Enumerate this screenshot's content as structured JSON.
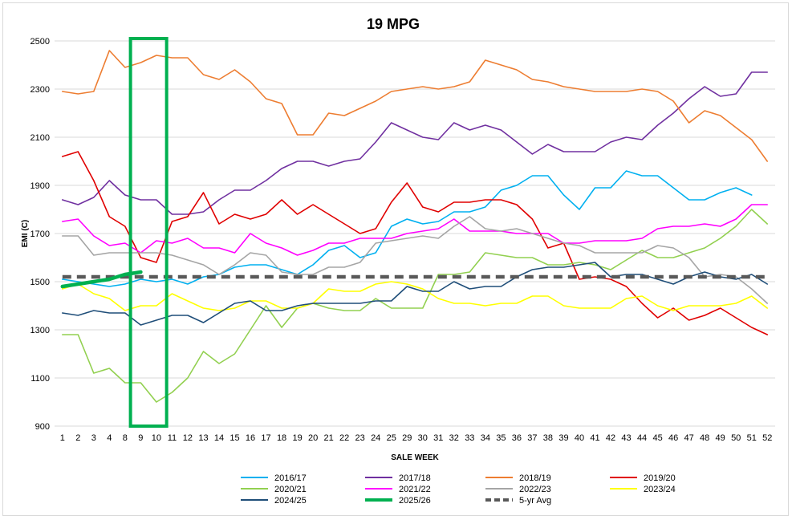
{
  "chart_data": {
    "type": "line",
    "title": "19 MPG",
    "xlabel": "SALE WEEK",
    "ylabel": "EMI (C)",
    "ylim": [
      900,
      2500
    ],
    "yticks": [
      900,
      1100,
      1300,
      1500,
      1700,
      1900,
      2100,
      2300,
      2500
    ],
    "grid": true,
    "legend_position": "bottom",
    "categories": [
      "1",
      "2",
      "3",
      "4",
      "8",
      "9",
      "10",
      "11",
      "12",
      "13",
      "14",
      "15",
      "16",
      "17",
      "18",
      "19",
      "20",
      "21",
      "22",
      "23",
      "24",
      "25",
      "29",
      "30",
      "31",
      "32",
      "33",
      "34",
      "35",
      "36",
      "37",
      "38",
      "39",
      "40",
      "41",
      "42",
      "43",
      "44",
      "45",
      "46",
      "47",
      "48",
      "49",
      "50",
      "51",
      "52"
    ],
    "highlight": {
      "from": "9",
      "to": "10",
      "color": "#00b050"
    },
    "series": [
      {
        "name": "2016/17",
        "color": "#00b0f0",
        "width": 1.6,
        "values": [
          1510,
          1500,
          1490,
          1480,
          1490,
          1510,
          1500,
          1510,
          1490,
          1520,
          1530,
          1560,
          1570,
          1570,
          1550,
          1530,
          1570,
          1630,
          1650,
          1600,
          1620,
          1730,
          1760,
          1740,
          1750,
          1790,
          1790,
          1810,
          1880,
          1900,
          1940,
          1940,
          1860,
          1800,
          1890,
          1890,
          1960,
          1940,
          1940,
          1890,
          1840,
          1840,
          1870,
          1890,
          1860,
          null
        ]
      },
      {
        "name": "2017/18",
        "color": "#7030a0",
        "width": 1.6,
        "values": [
          1840,
          1820,
          1850,
          1920,
          1860,
          1840,
          1840,
          1780,
          1780,
          1790,
          1840,
          1880,
          1880,
          1920,
          1970,
          2000,
          2000,
          1980,
          2000,
          2010,
          2080,
          2160,
          2130,
          2100,
          2090,
          2160,
          2130,
          2150,
          2130,
          2080,
          2030,
          2070,
          2040,
          2040,
          2040,
          2080,
          2100,
          2090,
          2150,
          2200,
          2260,
          2310,
          2270,
          2280,
          2370,
          2370
        ]
      },
      {
        "name": "2018/19",
        "color": "#ed7d31",
        "width": 1.6,
        "values": [
          2290,
          2280,
          2290,
          2460,
          2390,
          2410,
          2440,
          2430,
          2430,
          2360,
          2340,
          2380,
          2330,
          2260,
          2240,
          2110,
          2110,
          2200,
          2190,
          2220,
          2250,
          2290,
          2300,
          2310,
          2300,
          2310,
          2330,
          2420,
          2400,
          2380,
          2340,
          2330,
          2310,
          2300,
          2290,
          2290,
          2290,
          2300,
          2290,
          2250,
          2160,
          2210,
          2190,
          2140,
          2090,
          2000
        ]
      },
      {
        "name": "2019/20",
        "color": "#e00000",
        "width": 1.6,
        "values": [
          2020,
          2040,
          1920,
          1770,
          1730,
          1600,
          1580,
          1750,
          1770,
          1870,
          1740,
          1780,
          1760,
          1780,
          1840,
          1780,
          1820,
          1780,
          1740,
          1700,
          1720,
          1830,
          1910,
          1810,
          1790,
          1830,
          1830,
          1840,
          1840,
          1820,
          1760,
          1640,
          1660,
          1510,
          1520,
          1510,
          1480,
          1410,
          1350,
          1390,
          1340,
          1360,
          1390,
          1350,
          1310,
          1280
        ]
      },
      {
        "name": "2020/21",
        "color": "#92d050",
        "width": 1.6,
        "values": [
          1280,
          1280,
          1120,
          1140,
          1080,
          1080,
          1000,
          1040,
          1100,
          1210,
          1160,
          1200,
          1300,
          1400,
          1310,
          1390,
          1410,
          1390,
          1380,
          1380,
          1430,
          1390,
          1390,
          1390,
          1530,
          1530,
          1540,
          1620,
          1610,
          1600,
          1600,
          1570,
          1570,
          1580,
          1570,
          1550,
          1590,
          1630,
          1600,
          1600,
          1620,
          1640,
          1680,
          1730,
          1800,
          1740
        ]
      },
      {
        "name": "2021/22",
        "color": "#ff00ff",
        "width": 1.6,
        "values": [
          1750,
          1760,
          1690,
          1650,
          1660,
          1620,
          1670,
          1660,
          1680,
          1640,
          1640,
          1620,
          1700,
          1660,
          1640,
          1610,
          1630,
          1660,
          1660,
          1680,
          1680,
          1680,
          1700,
          1710,
          1720,
          1760,
          1710,
          1710,
          1710,
          1700,
          1700,
          1700,
          1660,
          1660,
          1670,
          1670,
          1670,
          1680,
          1720,
          1730,
          1730,
          1740,
          1730,
          1760,
          1820,
          1820
        ]
      },
      {
        "name": "2022/23",
        "color": "#a5a5a5",
        "width": 1.6,
        "values": [
          1690,
          1690,
          1610,
          1620,
          1620,
          1620,
          1620,
          1610,
          1590,
          1570,
          1530,
          1570,
          1620,
          1610,
          1540,
          1530,
          1530,
          1560,
          1560,
          1580,
          1660,
          1670,
          1680,
          1690,
          1680,
          1730,
          1770,
          1720,
          1710,
          1720,
          1700,
          1680,
          1660,
          1650,
          1620,
          1620,
          1620,
          1620,
          1650,
          1640,
          1600,
          1520,
          1530,
          1520,
          1470,
          1410
        ]
      },
      {
        "name": "2023/24",
        "color": "#ffff00",
        "width": 1.6,
        "values": [
          1470,
          1490,
          1450,
          1430,
          1380,
          1400,
          1400,
          1450,
          1420,
          1390,
          1380,
          1390,
          1420,
          1420,
          1390,
          1390,
          1410,
          1470,
          1460,
          1460,
          1490,
          1500,
          1490,
          1470,
          1430,
          1410,
          1410,
          1400,
          1410,
          1410,
          1440,
          1440,
          1400,
          1390,
          1390,
          1390,
          1430,
          1440,
          1400,
          1380,
          1400,
          1400,
          1400,
          1410,
          1440,
          1390
        ]
      },
      {
        "name": "2024/25",
        "color": "#1f4e79",
        "width": 1.6,
        "values": [
          1370,
          1360,
          1380,
          1370,
          1370,
          1320,
          1340,
          1360,
          1360,
          1330,
          1370,
          1410,
          1420,
          1380,
          1380,
          1400,
          1410,
          1410,
          1410,
          1410,
          1420,
          1420,
          1480,
          1460,
          1460,
          1500,
          1470,
          1480,
          1480,
          1520,
          1550,
          1560,
          1560,
          1570,
          1580,
          1520,
          1530,
          1530,
          1510,
          1490,
          1520,
          1540,
          1520,
          1510,
          1530,
          1490
        ]
      },
      {
        "name": "2025/26",
        "color": "#00b050",
        "width": 4.5,
        "values": [
          1480,
          1490,
          1500,
          1510,
          1530,
          1540,
          null,
          null,
          null,
          null,
          null,
          null,
          null,
          null,
          null,
          null,
          null,
          null,
          null,
          null,
          null,
          null,
          null,
          null,
          null,
          null,
          null,
          null,
          null,
          null,
          null,
          null,
          null,
          null,
          null,
          null,
          null,
          null,
          null,
          null,
          null,
          null,
          null,
          null,
          null,
          null
        ]
      },
      {
        "name": "5-yr Avg",
        "color": "#595959",
        "width": 4.5,
        "dashed": true,
        "values": [
          1520,
          1520,
          1520,
          1520,
          1520,
          1520,
          1520,
          1520,
          1520,
          1520,
          1520,
          1520,
          1520,
          1520,
          1520,
          1520,
          1520,
          1520,
          1520,
          1520,
          1520,
          1520,
          1520,
          1520,
          1520,
          1520,
          1520,
          1520,
          1520,
          1520,
          1520,
          1520,
          1520,
          1520,
          1520,
          1520,
          1520,
          1520,
          1520,
          1520,
          1520,
          1520,
          1520,
          1520,
          1520,
          1520
        ]
      }
    ]
  }
}
